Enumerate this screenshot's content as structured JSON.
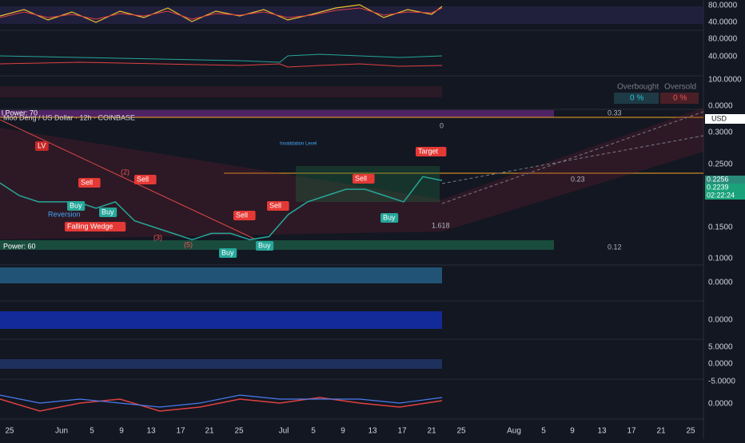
{
  "header": {
    "symbol": "Moo Deng / US Dollar · 12h · COINBASE",
    "power_top": "l Power: 70",
    "power_bottom": "Power: 60",
    "currency": "USD"
  },
  "axis": {
    "osc1": [
      "80.0000",
      "40.0000"
    ],
    "osc2": [
      "80.0000",
      "40.0000"
    ],
    "osc3": [
      "100.0000",
      "0.0000"
    ],
    "price": [
      "0.3000",
      "0.2500",
      "0.1500",
      "0.1000"
    ],
    "pane4": [
      "0.0000"
    ],
    "pane5": [
      "0.0000"
    ],
    "pane6": [
      "5.0000",
      "0.0000",
      "-5.0000"
    ],
    "pane7": [
      "0.0000"
    ]
  },
  "price_tags": {
    "upper": "0.2256",
    "last": "0.2239",
    "countdown": "02:22:24"
  },
  "table": {
    "headers": [
      "Overbought",
      "Oversold"
    ],
    "values": [
      "0 %",
      "0 %"
    ]
  },
  "levels": [
    "0.33",
    "0.23",
    "0.12",
    "0",
    "1.618"
  ],
  "annotations": {
    "target": "Target",
    "sell": [
      "Sell",
      "Sell",
      "Sell",
      "Sell",
      "Sell"
    ],
    "buy": [
      "Buy",
      "Buy",
      "Buy",
      "Buy",
      "Buy"
    ],
    "pattern": "Falling Wedge",
    "reversion": "Reversion",
    "lv": "LV",
    "waves": [
      "(2)",
      "(3)",
      "(5)"
    ],
    "invalidation": "Invalidation Level"
  },
  "price": {
    "closes": [
      0.22,
      0.2,
      0.19,
      0.19,
      0.19,
      0.18,
      0.19,
      0.16,
      0.15,
      0.14,
      0.13,
      0.14,
      0.14,
      0.13,
      0.135,
      0.17,
      0.19,
      0.2,
      0.21,
      0.21,
      0.2,
      0.19,
      0.23,
      0.2239
    ]
  },
  "x_axis": [
    "25",
    "Jun",
    "5",
    "9",
    "13",
    "17",
    "21",
    "25",
    "Jul",
    "5",
    "9",
    "13",
    "17",
    "21",
    "25",
    "Aug",
    "5",
    "9",
    "13",
    "17",
    "21",
    "25"
  ]
}
